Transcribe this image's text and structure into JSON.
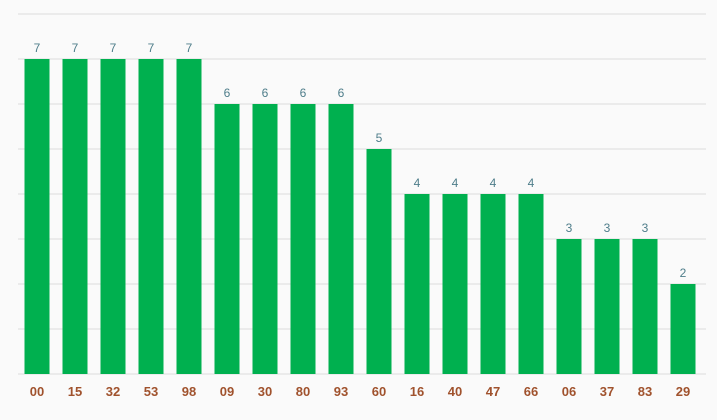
{
  "chart_data": {
    "type": "bar",
    "categories": [
      "00",
      "15",
      "32",
      "53",
      "98",
      "09",
      "30",
      "80",
      "93",
      "60",
      "16",
      "40",
      "47",
      "66",
      "06",
      "37",
      "83",
      "29"
    ],
    "values": [
      7,
      7,
      7,
      7,
      7,
      6,
      6,
      6,
      6,
      5,
      4,
      4,
      4,
      4,
      3,
      3,
      3,
      2
    ],
    "title": "",
    "xlabel": "",
    "ylabel": "",
    "ylim": [
      0,
      8
    ],
    "grid": true,
    "legend": "none",
    "bar_color": "#00b04f",
    "value_label_color": "#4e7d8a",
    "tick_label_color": "#a0522d",
    "grid_color": "#dcdcdc",
    "background": "#fafafa"
  }
}
